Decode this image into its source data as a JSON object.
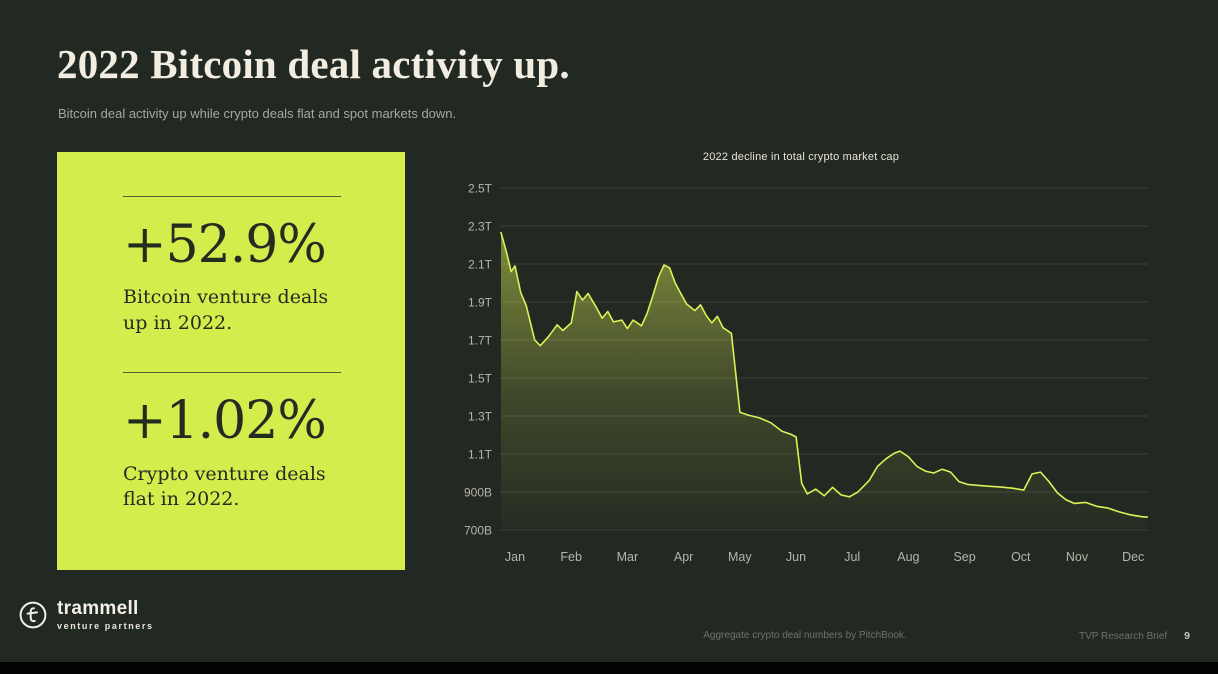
{
  "page": {
    "title": "2022 Bitcoin deal activity up.",
    "subtitle": "Bitcoin deal activity up while crypto deals flat and spot markets down."
  },
  "stats_card": {
    "bitcoin_stat": {
      "value": "+52.9%",
      "label": "Bitcoin venture deals up in 2022."
    },
    "crypto_stat": {
      "value": "+1.02%",
      "label": "Crypto venture deals flat in 2022."
    }
  },
  "chart_data": {
    "type": "area",
    "title": "2022 decline in total crypto market cap",
    "categories": [
      "Jan",
      "Feb",
      "Mar",
      "Apr",
      "May",
      "Jun",
      "Jul",
      "Aug",
      "Sep",
      "Oct",
      "Nov",
      "Dec"
    ],
    "x_unit": "months since Jan 1, 2022 (fractional)",
    "y_unit": "total crypto market cap in USD billions (T = trillions)",
    "ylim": [
      700,
      2500
    ],
    "grid": true,
    "legend": false,
    "y_ticks": [
      {
        "label": "2.5T",
        "value": 2500
      },
      {
        "label": "2.3T",
        "value": 2300
      },
      {
        "label": "2.1T",
        "value": 2100
      },
      {
        "label": "1.9T",
        "value": 1900
      },
      {
        "label": "1.7T",
        "value": 1700
      },
      {
        "label": "1.5T",
        "value": 1500
      },
      {
        "label": "1.3T",
        "value": 1300
      },
      {
        "label": "1.1T",
        "value": 1100
      },
      {
        "label": "900B",
        "value": 900
      },
      {
        "label": "700B",
        "value": 700
      }
    ],
    "points": [
      [
        0.0,
        2265
      ],
      [
        0.1,
        2160
      ],
      [
        0.18,
        2060
      ],
      [
        0.25,
        2090
      ],
      [
        0.35,
        1950
      ],
      [
        0.45,
        1880
      ],
      [
        0.6,
        1700
      ],
      [
        0.7,
        1670
      ],
      [
        0.85,
        1720
      ],
      [
        1.0,
        1780
      ],
      [
        1.1,
        1750
      ],
      [
        1.25,
        1790
      ],
      [
        1.35,
        1955
      ],
      [
        1.45,
        1910
      ],
      [
        1.55,
        1945
      ],
      [
        1.7,
        1870
      ],
      [
        1.8,
        1815
      ],
      [
        1.9,
        1850
      ],
      [
        2.0,
        1795
      ],
      [
        2.15,
        1805
      ],
      [
        2.25,
        1760
      ],
      [
        2.35,
        1805
      ],
      [
        2.5,
        1775
      ],
      [
        2.6,
        1840
      ],
      [
        2.7,
        1930
      ],
      [
        2.8,
        2030
      ],
      [
        2.9,
        2095
      ],
      [
        3.0,
        2080
      ],
      [
        3.1,
        2000
      ],
      [
        3.2,
        1945
      ],
      [
        3.3,
        1890
      ],
      [
        3.45,
        1855
      ],
      [
        3.55,
        1885
      ],
      [
        3.65,
        1830
      ],
      [
        3.75,
        1790
      ],
      [
        3.85,
        1825
      ],
      [
        3.95,
        1765
      ],
      [
        4.1,
        1735
      ],
      [
        4.25,
        1320
      ],
      [
        4.4,
        1305
      ],
      [
        4.6,
        1290
      ],
      [
        4.8,
        1265
      ],
      [
        5.0,
        1220
      ],
      [
        5.15,
        1205
      ],
      [
        5.25,
        1190
      ],
      [
        5.35,
        945
      ],
      [
        5.45,
        890
      ],
      [
        5.6,
        915
      ],
      [
        5.75,
        880
      ],
      [
        5.9,
        925
      ],
      [
        6.05,
        885
      ],
      [
        6.2,
        875
      ],
      [
        6.35,
        900
      ],
      [
        6.55,
        960
      ],
      [
        6.7,
        1035
      ],
      [
        6.85,
        1075
      ],
      [
        7.0,
        1105
      ],
      [
        7.1,
        1115
      ],
      [
        7.25,
        1085
      ],
      [
        7.4,
        1035
      ],
      [
        7.55,
        1010
      ],
      [
        7.7,
        1000
      ],
      [
        7.85,
        1020
      ],
      [
        8.0,
        1005
      ],
      [
        8.15,
        955
      ],
      [
        8.3,
        940
      ],
      [
        8.5,
        935
      ],
      [
        8.7,
        930
      ],
      [
        8.9,
        926
      ],
      [
        9.1,
        920
      ],
      [
        9.3,
        910
      ],
      [
        9.45,
        995
      ],
      [
        9.6,
        1005
      ],
      [
        9.75,
        955
      ],
      [
        9.9,
        895
      ],
      [
        10.05,
        860
      ],
      [
        10.2,
        840
      ],
      [
        10.4,
        845
      ],
      [
        10.6,
        825
      ],
      [
        10.8,
        815
      ],
      [
        11.0,
        795
      ],
      [
        11.2,
        780
      ],
      [
        11.4,
        770
      ],
      [
        11.5,
        768
      ]
    ]
  },
  "footer": {
    "logo_name": "trammell",
    "logo_tagline": "venture partners",
    "source_note": "Aggregate crypto deal numbers by PitchBook.",
    "brief_label": "TVP Research Brief",
    "page_number": "9"
  },
  "colors": {
    "background": "#222822",
    "card": "#d5ec4d",
    "accent": "#dcf156",
    "grid": "#3a403a",
    "tick_text": "#b7b5a9",
    "title_text": "#f1ede0",
    "muted_text": "#a8a79b",
    "footer_text": "#73726a",
    "card_text": "#242c21",
    "page_num": "#c9c7ba"
  }
}
